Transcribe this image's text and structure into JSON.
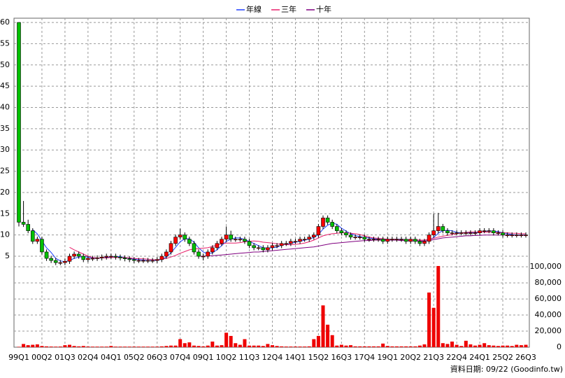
{
  "chart_data": {
    "type": "candlestick",
    "footnote": "資料日期: 09/22 (Goodinfo.tw)",
    "categories": [
      "99Q1",
      null,
      null,
      null,
      null,
      "00Q2",
      null,
      null,
      null,
      null,
      "01Q3",
      null,
      null,
      null,
      null,
      "02Q4",
      null,
      null,
      null,
      null,
      "04Q1",
      null,
      null,
      null,
      null,
      "05Q2",
      null,
      null,
      null,
      null,
      "06Q3",
      null,
      null,
      null,
      null,
      "07Q4",
      null,
      null,
      null,
      null,
      "09Q1",
      null,
      null,
      null,
      null,
      "10Q2",
      null,
      null,
      null,
      null,
      "11Q3",
      null,
      null,
      null,
      null,
      "12Q4",
      null,
      null,
      null,
      null,
      "14Q1",
      null,
      null,
      null,
      null,
      "15Q2",
      null,
      null,
      null,
      null,
      "16Q3",
      null,
      null,
      null,
      null,
      "17Q4",
      null,
      null,
      null,
      null,
      "19Q1",
      null,
      null,
      null,
      null,
      "20Q2",
      null,
      null,
      null,
      null,
      "21Q3",
      null,
      null,
      null,
      null,
      "22Q4",
      null,
      null,
      null,
      null,
      "24Q1",
      null,
      null,
      null,
      null,
      "25Q2",
      null,
      null,
      null,
      null,
      "26Q3"
    ],
    "open": [
      60,
      13,
      12.5,
      11,
      8.5,
      9,
      6,
      4.5,
      4,
      3.5,
      3.5,
      3.8,
      5,
      5.5,
      5,
      4.2,
      4.5,
      4.5,
      4.6,
      4.8,
      5,
      5,
      4.8,
      4.6,
      4.4,
      4.2,
      4,
      4,
      4,
      4,
      4,
      4.2,
      5,
      6,
      8,
      9.5,
      10,
      9,
      8,
      6,
      5,
      5,
      6,
      7,
      8,
      9,
      10,
      9,
      9,
      9,
      8.5,
      7.5,
      7,
      7,
      6.5,
      7,
      7.5,
      7.5,
      8,
      8,
      8.5,
      8.5,
      9,
      9,
      9.5,
      10,
      12,
      14,
      13,
      12,
      11,
      10.5,
      10,
      9.5,
      9.5,
      9.5,
      9,
      9,
      9,
      9,
      8.5,
      9,
      9,
      9,
      9,
      8.5,
      9,
      8.5,
      8,
      8.5,
      10,
      11,
      12,
      11,
      10.5,
      10.5,
      10.5,
      10.5,
      10.5,
      10.5,
      10.5,
      11,
      11,
      11,
      10.5,
      10.5,
      10,
      10,
      10,
      10,
      10
    ],
    "high": [
      60,
      18,
      13.6,
      11.6,
      9.6,
      9.6,
      6.6,
      5.1,
      4.6,
      4.1,
      4.4,
      5.6,
      6.1,
      6.1,
      5.6,
      5.1,
      5.1,
      5.2,
      5.4,
      5.6,
      5.6,
      5.6,
      5.4,
      5.2,
      5,
      4.8,
      4.6,
      4.6,
      4.6,
      4.6,
      4.8,
      5.6,
      6.6,
      8.6,
      10.1,
      11.5,
      10.6,
      9.6,
      8.6,
      6.6,
      5.6,
      6.6,
      7.6,
      8.6,
      9.6,
      12,
      11,
      9.6,
      9.6,
      9.6,
      9.1,
      8.1,
      7.6,
      7.6,
      7.6,
      8.1,
      8.1,
      8.6,
      8.6,
      9.1,
      9.1,
      9.6,
      9.6,
      10.1,
      10.6,
      12.6,
      14.6,
      14.6,
      13.6,
      12.6,
      11.6,
      11.1,
      10.6,
      10.1,
      10.1,
      10.1,
      9.6,
      9.6,
      9.6,
      9.6,
      9.6,
      9.6,
      9.6,
      9.6,
      9.6,
      9.6,
      9.6,
      9.1,
      9.1,
      10.6,
      15,
      15.2,
      12.6,
      11.6,
      11.1,
      11.1,
      11.1,
      11.1,
      11.1,
      11.1,
      11.6,
      11.6,
      11.6,
      11.6,
      11.1,
      11.1,
      10.6,
      10.6,
      10.6,
      10.6,
      10.6
    ],
    "low": [
      12,
      11.9,
      10.4,
      7.9,
      7.9,
      5.4,
      3.9,
      3.4,
      2.9,
      2.9,
      2.9,
      3.2,
      4.4,
      4.4,
      3.6,
      3.6,
      3.9,
      3.9,
      4,
      4.2,
      4.4,
      4.2,
      4,
      3.8,
      3.6,
      3.4,
      3.4,
      3.4,
      3.4,
      3.4,
      3.4,
      3.6,
      4.4,
      5.4,
      7.4,
      8.9,
      8.4,
      7.4,
      5.4,
      4.4,
      4,
      4.4,
      5.4,
      6.4,
      7.4,
      8.4,
      8.4,
      8.4,
      8.4,
      7.9,
      6.9,
      6.4,
      6.4,
      5.9,
      5.9,
      6.4,
      6.9,
      6.9,
      7.4,
      7.4,
      7.9,
      7.9,
      8.4,
      8.4,
      8.9,
      9.4,
      11.4,
      12.4,
      11.4,
      10.4,
      9.9,
      9.4,
      8.9,
      8.9,
      8.9,
      8.4,
      8.4,
      8.4,
      8.4,
      7.9,
      7.9,
      8.4,
      8.4,
      8.4,
      7.9,
      7.9,
      7.9,
      7.4,
      7.4,
      7.9,
      9.4,
      10.4,
      10.4,
      9.9,
      9.9,
      9.9,
      9.9,
      9.9,
      9.9,
      9.9,
      9.9,
      10.4,
      10.4,
      9.9,
      9.9,
      9.4,
      9.4,
      9.4,
      9.4,
      9.4,
      9.4
    ],
    "close": [
      13,
      12.5,
      11,
      8.5,
      9,
      6,
      4.5,
      4,
      3.5,
      3.5,
      3.8,
      5,
      5.5,
      5,
      4.2,
      4.5,
      4.5,
      4.6,
      4.8,
      5,
      5,
      4.8,
      4.6,
      4.4,
      4.2,
      4,
      4,
      4,
      4,
      4,
      4.2,
      5,
      6,
      8,
      9.5,
      10,
      9,
      8,
      6,
      5,
      5,
      6,
      7,
      8,
      9,
      10,
      9,
      9,
      9,
      8.5,
      7.5,
      7,
      7,
      6.5,
      7,
      7.5,
      7.5,
      8,
      8,
      8.5,
      8.5,
      9,
      9,
      9.5,
      10,
      12,
      14,
      13,
      12,
      11,
      10.5,
      10,
      9.5,
      9.5,
      9.5,
      9,
      9,
      9,
      9,
      8.5,
      9,
      9,
      9,
      9,
      8.5,
      9,
      8.5,
      8,
      8.5,
      10,
      11,
      12,
      11,
      10.5,
      10.5,
      10.5,
      10.5,
      10.5,
      10.5,
      10.5,
      11,
      11,
      11,
      10.5,
      10.5,
      10,
      10,
      10,
      10,
      10,
      10
    ],
    "up_color": "#ff0000",
    "down_color": "#00c000",
    "series": [
      {
        "name": "年線",
        "color": "#2040ff",
        "values": [
          null,
          null,
          null,
          11.25,
          10.25,
          8.6,
          7,
          5.9,
          4.5,
          3.9,
          3.7,
          4,
          4.5,
          4.8,
          4.9,
          4.8,
          4.6,
          4.5,
          4.6,
          4.7,
          4.9,
          4.9,
          4.9,
          4.7,
          4.5,
          4.3,
          4.2,
          4.1,
          4,
          4,
          4,
          4.3,
          4.8,
          5.8,
          7.1,
          8.4,
          9.1,
          9.1,
          8.3,
          7,
          6,
          5.5,
          5.8,
          6.5,
          7.5,
          8.5,
          9,
          9.3,
          9.3,
          8.9,
          8.5,
          8,
          7.5,
          7,
          6.9,
          7,
          7.1,
          7.6,
          7.8,
          8,
          8.3,
          8.5,
          8.8,
          9,
          9.4,
          10.1,
          11.4,
          12.3,
          12.8,
          12.5,
          11.6,
          10.9,
          10.3,
          9.9,
          9.6,
          9.4,
          9.3,
          9.1,
          9,
          8.9,
          8.9,
          8.9,
          9,
          9,
          8.9,
          8.9,
          8.8,
          8.5,
          8.5,
          8.8,
          9.4,
          10.4,
          11,
          11.1,
          11,
          10.6,
          10.5,
          10.5,
          10.5,
          10.5,
          10.6,
          10.8,
          11,
          10.9,
          10.8,
          10.5,
          10.3,
          10.1,
          10,
          10,
          10
        ]
      },
      {
        "name": "三年",
        "color": "#e8206a",
        "values": [
          null,
          null,
          null,
          null,
          null,
          null,
          null,
          null,
          null,
          null,
          null,
          7.1,
          6.5,
          6,
          5.5,
          5,
          4.7,
          4.6,
          4.6,
          4.6,
          4.7,
          4.7,
          4.7,
          4.7,
          4.6,
          4.5,
          4.4,
          4.4,
          4.3,
          4.2,
          4.2,
          4.3,
          4.5,
          4.8,
          5.2,
          5.7,
          6.1,
          6.5,
          6.7,
          6.8,
          6.9,
          7,
          7.3,
          7.6,
          7.9,
          8.1,
          8.1,
          8.1,
          8.2,
          8.4,
          8.5,
          8.6,
          8.5,
          8.3,
          8.2,
          8.1,
          7.9,
          7.8,
          7.7,
          7.7,
          7.8,
          7.9,
          8.1,
          8.4,
          8.8,
          9.3,
          9.8,
          10.1,
          10.3,
          10.4,
          10.5,
          10.5,
          10.4,
          10.3,
          10.1,
          9.8,
          9.5,
          9.3,
          9.2,
          9.1,
          9,
          9,
          9,
          8.9,
          8.9,
          8.9,
          8.9,
          8.8,
          8.8,
          9,
          9.2,
          9.5,
          9.7,
          9.9,
          10.1,
          10.3,
          10.5,
          10.6,
          10.7,
          10.7,
          10.7,
          10.7,
          10.6,
          10.6,
          10.6,
          10.5,
          10.5,
          10.4,
          10.4,
          10.3,
          10.3
        ]
      },
      {
        "name": "十年",
        "color": "#800080",
        "values": [
          null,
          null,
          null,
          null,
          null,
          null,
          null,
          null,
          null,
          null,
          null,
          null,
          null,
          null,
          null,
          null,
          null,
          null,
          null,
          null,
          null,
          null,
          null,
          null,
          null,
          null,
          null,
          null,
          null,
          null,
          null,
          null,
          null,
          null,
          null,
          null,
          null,
          null,
          null,
          5,
          5,
          5.1,
          5.1,
          5.2,
          5.3,
          5.4,
          5.5,
          5.6,
          5.7,
          5.8,
          5.9,
          6,
          6,
          6.1,
          6.2,
          6.3,
          6.4,
          6.5,
          6.6,
          6.7,
          6.8,
          6.9,
          7,
          7.1,
          7.2,
          7.4,
          7.6,
          7.8,
          8,
          8.1,
          8.2,
          8.3,
          8.4,
          8.5,
          8.6,
          8.7,
          8.7,
          8.8,
          8.8,
          8.8,
          8.8,
          8.8,
          8.8,
          8.7,
          8.7,
          8.6,
          8.6,
          8.6,
          8.6,
          8.7,
          8.9,
          9.1,
          9.3,
          9.4,
          9.5,
          9.6,
          9.7,
          9.8,
          9.8,
          9.9,
          9.9,
          10,
          10,
          10,
          10,
          10,
          10,
          10,
          10,
          10,
          10
        ]
      }
    ],
    "ylim": [
      2.7,
      61
    ],
    "yticks": [
      5,
      10,
      15,
      20,
      25,
      30,
      35,
      40,
      45,
      50,
      55,
      60
    ],
    "grid": true,
    "volume": {
      "color": "#ee0000",
      "values": [
        500,
        4000,
        2500,
        3000,
        3500,
        1500,
        1000,
        800,
        700,
        800,
        2500,
        3000,
        1500,
        1000,
        1500,
        800,
        700,
        700,
        700,
        700,
        1500,
        700,
        700,
        700,
        700,
        700,
        700,
        700,
        700,
        700,
        700,
        1000,
        1500,
        2000,
        2000,
        10000,
        5000,
        6000,
        2000,
        1500,
        1000,
        2000,
        7000,
        2000,
        2500,
        18000,
        14000,
        5000,
        3000,
        10000,
        2000,
        2000,
        2000,
        1500,
        4000,
        2500,
        1500,
        1000,
        800,
        800,
        800,
        800,
        800,
        1000,
        10000,
        14000,
        52000,
        28000,
        15000,
        2000,
        3000,
        2000,
        2500,
        1000,
        1000,
        1000,
        1000,
        1000,
        1000,
        4500,
        1500,
        1000,
        1000,
        1000,
        1000,
        1000,
        1000,
        2000,
        3500,
        68000,
        49000,
        101000,
        5000,
        4000,
        7000,
        3000,
        1500,
        8000,
        3500,
        2000,
        3000,
        5000,
        2500,
        2000,
        1500,
        2000,
        2000,
        1500,
        3000,
        2500,
        3000
      ],
      "ylim": [
        0,
        101000
      ],
      "yticks": [
        0,
        {
          "value": 20000,
          "label": "20,000"
        },
        {
          "value": 40000,
          "label": "40,000"
        },
        {
          "value": 60000,
          "label": "60,000"
        },
        {
          "value": 80000,
          "label": "80,000"
        },
        {
          "value": 100000,
          "label": "100,000"
        }
      ]
    }
  }
}
